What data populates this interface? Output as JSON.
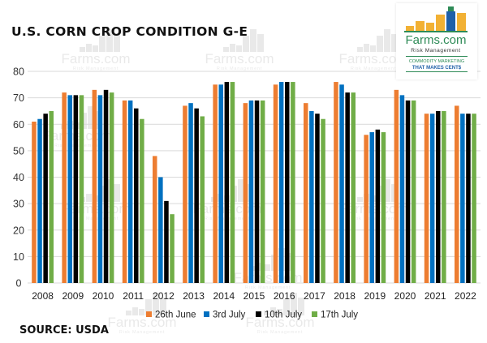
{
  "header": {
    "title": "U.S. CORN CROP CONDITION G-E"
  },
  "logo": {
    "brand": "Farms.com",
    "subtitle": "Risk Management",
    "tagline_1": "COMMODITY MARKETING",
    "tagline_2": "THAT MAKES CENT$"
  },
  "watermark": {
    "brand": "Farms.com",
    "subtitle": "Risk Management"
  },
  "footer": {
    "source": "SOURCE: USDA"
  },
  "colors": {
    "series": [
      "#ED7D31",
      "#0070C0",
      "#000000",
      "#70AD47"
    ],
    "grid": "#D9D9D9",
    "axis_text": "#333333",
    "logo_green": "#2E8B57",
    "logo_blue": "#1F5FA8",
    "logo_gold": "#F2B134"
  },
  "chart_data": {
    "type": "bar",
    "title": "U.S. CORN CROP CONDITION G-E",
    "xlabel": "",
    "ylabel": "",
    "ylim": [
      0,
      80
    ],
    "yticks": [
      0,
      10,
      20,
      30,
      40,
      50,
      60,
      70,
      80
    ],
    "grid": true,
    "legend_position": "bottom",
    "categories": [
      "2008",
      "2009",
      "2010",
      "2011",
      "2012",
      "2013",
      "2014",
      "2015",
      "2016",
      "2017",
      "2018",
      "2019",
      "2020",
      "2021",
      "2022"
    ],
    "series": [
      {
        "name": "26th June",
        "values": [
          61,
          72,
          73,
          69,
          48,
          67,
          75,
          68,
          75,
          68,
          76,
          56,
          73,
          64,
          67
        ]
      },
      {
        "name": "3rd July",
        "values": [
          62,
          71,
          71,
          69,
          40,
          68,
          75,
          69,
          76,
          65,
          75,
          57,
          71,
          64,
          64
        ]
      },
      {
        "name": "10th July",
        "values": [
          64,
          71,
          73,
          66,
          31,
          66,
          76,
          69,
          76,
          64,
          72,
          58,
          69,
          65,
          64
        ]
      },
      {
        "name": "17th July",
        "values": [
          65,
          71,
          72,
          62,
          26,
          63,
          76,
          69,
          76,
          62,
          72,
          57,
          69,
          65,
          64
        ]
      }
    ]
  }
}
